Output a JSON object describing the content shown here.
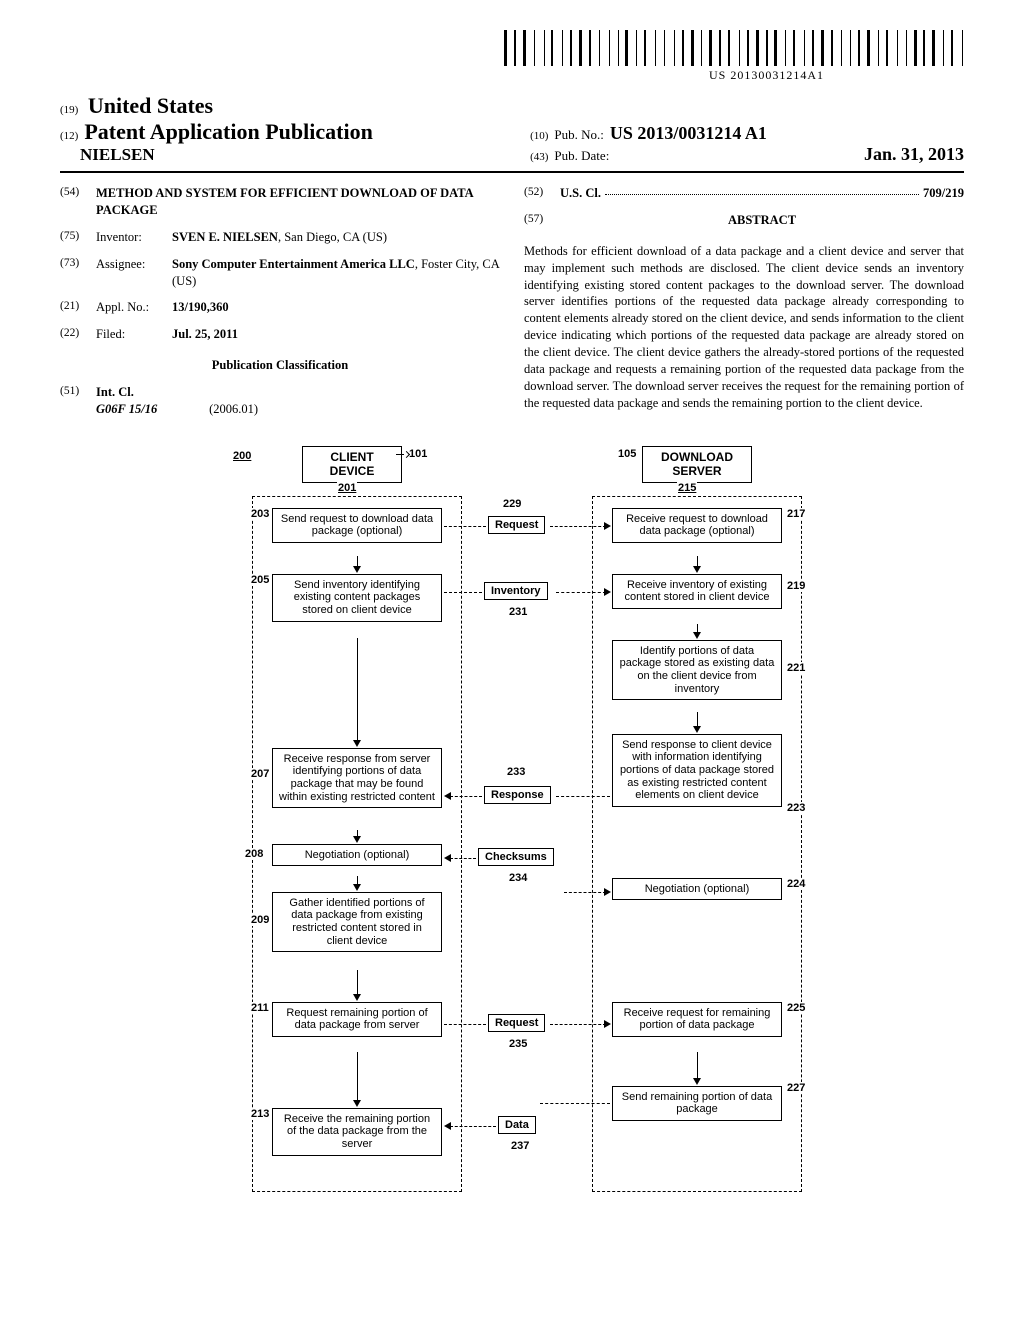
{
  "barcode_text": "US 20130031214A1",
  "header": {
    "country_code": "(19)",
    "country": "United States",
    "pubtype_code": "(12)",
    "pubtype": "Patent Application Publication",
    "inventor_surname": "NIELSEN",
    "pubno_code": "(10)",
    "pubno_label": "Pub. No.:",
    "pubno": "US 2013/0031214 A1",
    "pubdate_code": "(43)",
    "pubdate_label": "Pub. Date:",
    "pubdate": "Jan. 31, 2013"
  },
  "biblio": {
    "title": {
      "num": "(54)",
      "val": "METHOD AND SYSTEM FOR EFFICIENT DOWNLOAD OF DATA PACKAGE"
    },
    "inventor": {
      "num": "(75)",
      "label": "Inventor:",
      "name": "SVEN E. NIELSEN",
      "loc": ", San Diego, CA (US)"
    },
    "assignee": {
      "num": "(73)",
      "label": "Assignee:",
      "name": "Sony Computer Entertainment America LLC",
      "loc": ", Foster City, CA (US)"
    },
    "applno": {
      "num": "(21)",
      "label": "Appl. No.:",
      "val": "13/190,360"
    },
    "filed": {
      "num": "(22)",
      "label": "Filed:",
      "val": "Jul. 25, 2011"
    },
    "pubclass_heading": "Publication Classification",
    "intcl": {
      "num": "(51)",
      "label": "Int. Cl.",
      "code": "G06F 15/16",
      "year": "(2006.01)"
    },
    "uscl": {
      "num": "(52)",
      "label": "U.S. Cl.",
      "val": "709/219"
    }
  },
  "abstract": {
    "num": "(57)",
    "heading": "ABSTRACT",
    "text": "Methods for efficient download of a data package and a client device and server that may implement such methods are disclosed. The client device sends an inventory identifying existing stored content packages to the download server. The download server identifies portions of the requested data package already corresponding to content elements already stored on the client device, and sends information to the client device indicating which portions of the requested data package are already stored on the client device. The client device gathers the already-stored portions of the requested data package and requests a remaining portion of the requested data package from the download server. The download server receives the request for the remaining portion of the requested data package and sends the remaining portion to the client device."
  },
  "flowchart": {
    "ref_main": "200",
    "client_hdr": "CLIENT DEVICE",
    "client_ref": "101",
    "client_group": "201",
    "server_hdr": "DOWNLOAD SERVER",
    "server_ref": "105",
    "server_group": "215",
    "left": {
      "b203": {
        "ref": "203",
        "text": "Send request to download data package (optional)"
      },
      "b205": {
        "ref": "205",
        "text": "Send inventory identifying existing content packages stored on client device"
      },
      "b207": {
        "ref": "207",
        "text": "Receive response from server identifying portions of data package that may be found within existing restricted content"
      },
      "b208": {
        "ref": "208",
        "text": "Negotiation (optional)"
      },
      "b209": {
        "ref": "209",
        "text": "Gather identified portions of data package from existing restricted content stored in client device"
      },
      "b211": {
        "ref": "211",
        "text": "Request remaining portion of data package from server"
      },
      "b213": {
        "ref": "213",
        "text": "Receive the remaining portion of the data package from the server"
      }
    },
    "right": {
      "b217": {
        "ref": "217",
        "text": "Receive request to download data package (optional)"
      },
      "b219": {
        "ref": "219",
        "text": "Receive inventory of existing content stored in client device"
      },
      "b221": {
        "ref": "221",
        "text": "Identify portions of data package stored as existing data on the client device from inventory"
      },
      "b223": {
        "ref": "223",
        "text": "Send response to client device with information identifying portions of data package stored as existing restricted content elements on client device"
      },
      "b224": {
        "ref": "224",
        "text": "Negotiation (optional)"
      },
      "b225": {
        "ref": "225",
        "text": "Receive request for remaining portion of data package"
      },
      "b227": {
        "ref": "227",
        "text": "Send remaining portion of data package"
      }
    },
    "msgs": {
      "m229": {
        "ref": "229",
        "text": "Request"
      },
      "m231": {
        "ref": "231",
        "text": "Inventory"
      },
      "m233": {
        "ref": "233",
        "text": "Response"
      },
      "m234": {
        "ref": "234",
        "text": "Checksums"
      },
      "m235": {
        "ref": "235",
        "text": "Request"
      },
      "m237": {
        "ref": "237",
        "text": "Data"
      }
    }
  },
  "style": {
    "page_bg": "#ffffff",
    "text_color": "#000000",
    "rule_color": "#000000",
    "font_body": "Times New Roman",
    "font_diagram": "Arial"
  }
}
